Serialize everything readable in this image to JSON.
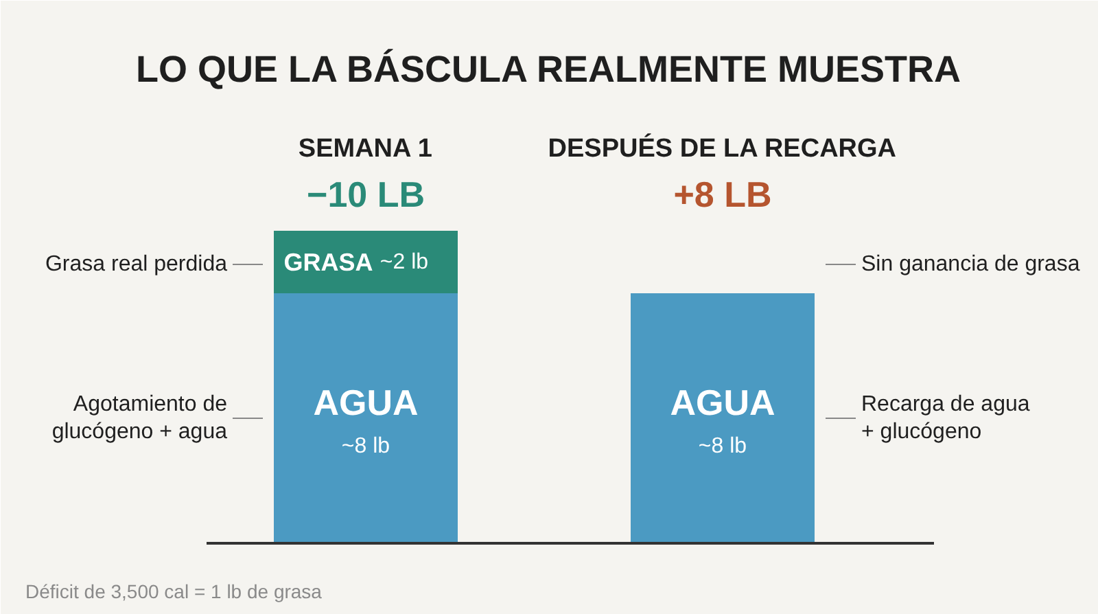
{
  "chart_data": {
    "type": "bar",
    "stacked": true,
    "title": "LO QUE LA BÁSCULA REALMENTE MUESTRA",
    "categories": [
      "SEMANA 1",
      "DESPUÉS DE LA RECARGA"
    ],
    "series": [
      {
        "name": "AGUA",
        "color": "#4b9ac2",
        "values": [
          8,
          8
        ],
        "value_labels": [
          "~8 lb",
          "~8 lb"
        ]
      },
      {
        "name": "GRASA",
        "color": "#2a8a78",
        "values": [
          2,
          null
        ],
        "value_labels": [
          "~2 lb",
          null
        ]
      }
    ],
    "annotations": [
      "−10 LB",
      "+8 LB",
      "Grasa real perdida",
      "Agotamiento de\nglucógeno + agua",
      "Sin ganancia de grasa",
      "Recarga de agua\n+ glucógeno",
      "Déficit de 3,500 cal = 1 lb de grasa"
    ]
  }
}
